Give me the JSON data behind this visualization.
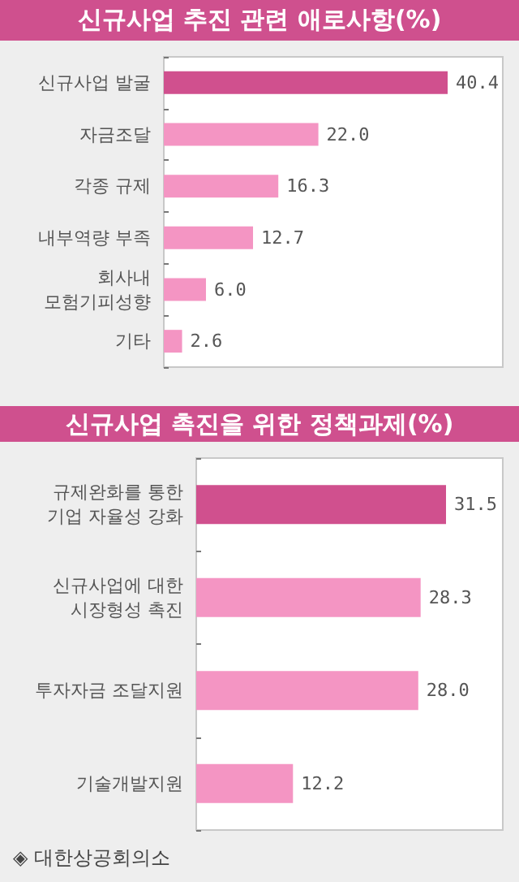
{
  "chart_data": [
    {
      "type": "bar",
      "orientation": "horizontal",
      "title": "신규사업 추진 관련 애로사항(%)",
      "categories": [
        "신규사업 발굴",
        "자금조달",
        "각종 규제",
        "내부역량 부족",
        "회사내\n모험기피성향",
        "기타"
      ],
      "values": [
        40.4,
        22.0,
        16.3,
        12.7,
        6.0,
        2.6
      ],
      "value_labels": [
        "40.4",
        "22.0",
        "16.3",
        "12.7",
        "6.0",
        "2.6"
      ],
      "colors": [
        "#d0508e",
        "#f495c3",
        "#f495c3",
        "#f495c3",
        "#f495c3",
        "#f495c3"
      ]
    },
    {
      "type": "bar",
      "orientation": "horizontal",
      "title": "신규사업 촉진을 위한 정책과제(%)",
      "categories": [
        "규제완화를 통한\n기업 자율성 강화",
        "신규사업에 대한\n시장형성 촉진",
        "투자자금 조달지원",
        "기술개발지원"
      ],
      "values": [
        31.5,
        28.3,
        28.0,
        12.2
      ],
      "value_labels": [
        "31.5",
        "28.3",
        "28.0",
        "12.2"
      ],
      "colors": [
        "#d0508e",
        "#f495c3",
        "#f495c3",
        "#f495c3"
      ],
      "annotations": [
        "◈ 대한상공회의소"
      ]
    }
  ]
}
